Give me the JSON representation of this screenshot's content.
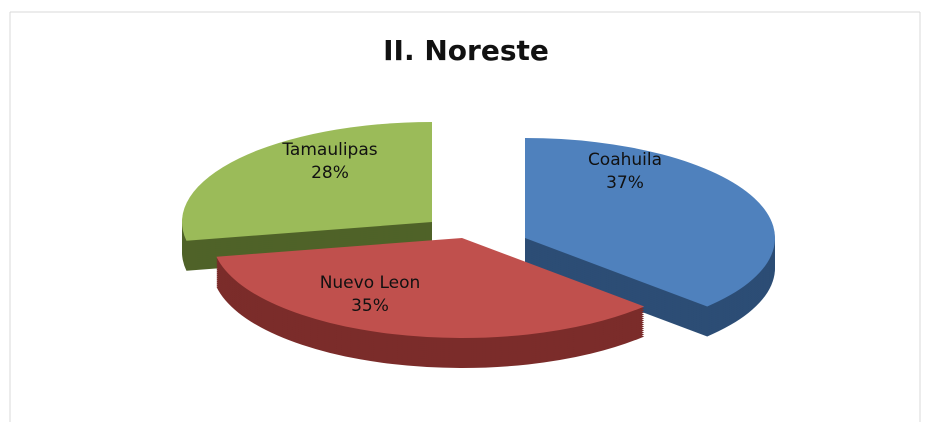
{
  "chart_data": {
    "type": "pie",
    "title": "II. Noreste",
    "categories": [
      "Coahuila",
      "Nuevo Leon",
      "Tamaulipas"
    ],
    "values": [
      37,
      35,
      28
    ],
    "value_labels": [
      "37%",
      "35%",
      "28%"
    ],
    "colors": [
      "#4f81bd",
      "#c0504d",
      "#9bbb59"
    ],
    "side_colors": [
      "#2c4d75",
      "#7b2c2a",
      "#4f6228"
    ]
  }
}
